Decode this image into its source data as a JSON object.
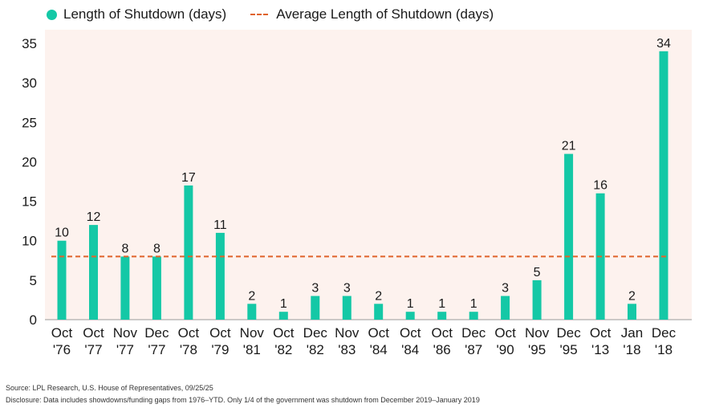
{
  "legend": {
    "series_label": "Length of Shutdown (days)",
    "average_label": "Average Length of Shutdown (days)"
  },
  "colors": {
    "bar": "#14c8a6",
    "average_line": "#e0632a",
    "plot_background": "#fdf2ee"
  },
  "chart_data": {
    "type": "bar",
    "categories": [
      [
        "Oct",
        "'76"
      ],
      [
        "Oct",
        "'77"
      ],
      [
        "Nov",
        "'77"
      ],
      [
        "Dec",
        "'77"
      ],
      [
        "Oct",
        "'78"
      ],
      [
        "Oct",
        "'79"
      ],
      [
        "Nov",
        "'81"
      ],
      [
        "Oct",
        "'82"
      ],
      [
        "Dec",
        "'82"
      ],
      [
        "Nov",
        "'83"
      ],
      [
        "Oct",
        "'84"
      ],
      [
        "Oct",
        "'84"
      ],
      [
        "Oct",
        "'86"
      ],
      [
        "Dec",
        "'87"
      ],
      [
        "Oct",
        "'90"
      ],
      [
        "Nov",
        "'95"
      ],
      [
        "Dec",
        "'95"
      ],
      [
        "Oct",
        "'13"
      ],
      [
        "Jan",
        "'18"
      ],
      [
        "Dec",
        "'18"
      ]
    ],
    "series": [
      {
        "name": "Length of Shutdown (days)",
        "values": [
          10,
          12,
          8,
          8,
          17,
          11,
          2,
          1,
          3,
          3,
          2,
          1,
          1,
          1,
          3,
          5,
          21,
          16,
          2,
          34
        ]
      }
    ],
    "average": 8,
    "ylim": [
      0,
      35
    ],
    "yticks": [
      0,
      5,
      10,
      15,
      20,
      25,
      30,
      35
    ],
    "grid": false,
    "legend_position": "top-left"
  },
  "footer": {
    "source": "Source: LPL Research, U.S. House of Representatives, 09/25/25",
    "disclosure": "Disclosure: Data includes showdowns/funding gaps from 1976–YTD. Only 1/4 of the government was shutdown from December 2019–January 2019"
  }
}
